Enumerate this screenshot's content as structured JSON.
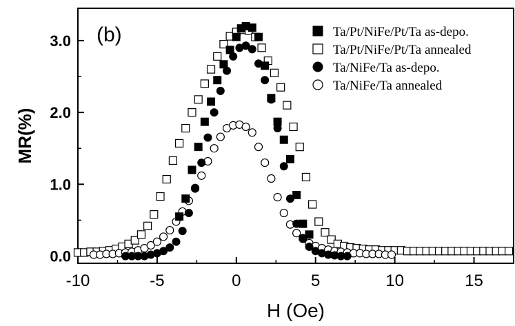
{
  "chart_data": {
    "type": "scatter",
    "panel_label": "(b)",
    "xlabel": "H (Oe)",
    "ylabel": "MR(%)",
    "xlim": [
      -10,
      17.5
    ],
    "ylim": [
      -0.1,
      3.45
    ],
    "xticks": [
      -10,
      -5,
      0,
      5,
      10,
      15
    ],
    "xtick_labels": [
      "-10",
      "-5",
      "0",
      "5",
      "10",
      "15"
    ],
    "yticks": [
      0.0,
      1.0,
      2.0,
      3.0
    ],
    "ytick_labels": [
      "0.0",
      "1.0",
      "2.0",
      "3.0"
    ],
    "grid": false,
    "legend_position": "top-right",
    "series": [
      {
        "name": "Ta/Pt/NiFe/Pt/Ta as-depo.",
        "marker": "square-filled",
        "x": [
          -3.6,
          -3.2,
          -2.8,
          -2.4,
          -2.0,
          -1.6,
          -1.2,
          -0.8,
          -0.4,
          0.0,
          0.3,
          0.6,
          1.0,
          1.4,
          1.8,
          2.2,
          2.6,
          3.0,
          3.4,
          3.8,
          4.2,
          4.6
        ],
        "y": [
          0.55,
          0.8,
          1.2,
          1.52,
          1.87,
          2.15,
          2.45,
          2.67,
          2.87,
          3.05,
          3.17,
          3.2,
          3.18,
          3.05,
          2.65,
          2.2,
          1.87,
          1.62,
          1.35,
          0.85,
          0.45,
          0.3
        ]
      },
      {
        "name": "Ta/Pt/NiFe/Pt/Ta annealed",
        "marker": "square-open",
        "x": [
          -10,
          -9.6,
          -9.2,
          -8.8,
          -8.4,
          -8.0,
          -7.6,
          -7.2,
          -6.8,
          -6.4,
          -6.0,
          -5.6,
          -5.2,
          -4.8,
          -4.4,
          -4.0,
          -3.6,
          -3.2,
          -2.8,
          -2.4,
          -2.0,
          -1.6,
          -1.2,
          -0.8,
          -0.4,
          0.0,
          0.4,
          0.8,
          1.2,
          1.6,
          2.0,
          2.4,
          2.8,
          3.2,
          3.6,
          4.0,
          4.4,
          4.8,
          5.2,
          5.6,
          6.0,
          6.4,
          6.8,
          7.2,
          7.6,
          8.0,
          8.4,
          8.8,
          9.2,
          9.6,
          10.0,
          10.4,
          10.8,
          11.2,
          11.6,
          12.0,
          12.4,
          12.8,
          13.2,
          13.6,
          14.0,
          14.4,
          14.8,
          15.2,
          15.6,
          16.0,
          16.4,
          16.8,
          17.2
        ],
        "y": [
          0.05,
          0.05,
          0.06,
          0.06,
          0.07,
          0.08,
          0.1,
          0.13,
          0.17,
          0.22,
          0.3,
          0.42,
          0.58,
          0.83,
          1.07,
          1.33,
          1.57,
          1.78,
          2.0,
          2.18,
          2.4,
          2.6,
          2.78,
          2.95,
          3.06,
          3.12,
          3.15,
          3.14,
          3.05,
          2.9,
          2.72,
          2.55,
          2.35,
          2.1,
          1.8,
          1.52,
          1.1,
          0.72,
          0.48,
          0.33,
          0.23,
          0.17,
          0.14,
          0.12,
          0.11,
          0.1,
          0.09,
          0.09,
          0.08,
          0.08,
          0.08,
          0.08,
          0.07,
          0.07,
          0.07,
          0.07,
          0.07,
          0.07,
          0.07,
          0.07,
          0.07,
          0.07,
          0.07,
          0.07,
          0.07,
          0.07,
          0.07,
          0.07,
          0.07
        ]
      },
      {
        "name": "Ta/NiFe/Ta as-depo.",
        "marker": "circle-filled",
        "x": [
          -7.0,
          -6.6,
          -6.2,
          -5.8,
          -5.4,
          -5.0,
          -4.6,
          -4.2,
          -3.8,
          -3.4,
          -3.0,
          -2.6,
          -2.2,
          -1.8,
          -1.4,
          -1.0,
          -0.6,
          -0.2,
          0.2,
          0.6,
          1.0,
          1.4,
          1.8,
          2.2,
          2.6,
          3.0,
          3.4,
          3.8,
          4.2,
          4.6,
          5.0,
          5.4,
          5.8,
          6.2,
          6.6,
          7.0
        ],
        "y": [
          0.0,
          0.0,
          0.0,
          0.0,
          0.02,
          0.04,
          0.07,
          0.12,
          0.2,
          0.35,
          0.6,
          0.95,
          1.3,
          1.65,
          2.0,
          2.3,
          2.58,
          2.78,
          2.9,
          2.93,
          2.88,
          2.68,
          2.45,
          2.18,
          1.78,
          1.25,
          0.8,
          0.45,
          0.25,
          0.13,
          0.07,
          0.04,
          0.02,
          0.01,
          0.0,
          0.0
        ]
      },
      {
        "name": "Ta/NiFe/Ta annealed",
        "marker": "circle-open",
        "x": [
          -9.0,
          -8.6,
          -8.2,
          -7.8,
          -7.4,
          -7.0,
          -6.6,
          -6.2,
          -5.8,
          -5.4,
          -5.0,
          -4.6,
          -4.2,
          -3.8,
          -3.4,
          -3.0,
          -2.6,
          -2.2,
          -1.8,
          -1.4,
          -1.0,
          -0.6,
          -0.2,
          0.2,
          0.6,
          1.0,
          1.4,
          1.8,
          2.2,
          2.6,
          3.0,
          3.4,
          3.8,
          4.2,
          4.6,
          5.0,
          5.4,
          5.8,
          6.2,
          6.6,
          7.0,
          7.4,
          7.8,
          8.2,
          8.6,
          9.0,
          9.4,
          9.8
        ],
        "y": [
          0.02,
          0.02,
          0.03,
          0.03,
          0.04,
          0.05,
          0.06,
          0.08,
          0.11,
          0.15,
          0.2,
          0.27,
          0.36,
          0.48,
          0.62,
          0.77,
          0.94,
          1.12,
          1.32,
          1.5,
          1.66,
          1.78,
          1.82,
          1.83,
          1.8,
          1.72,
          1.52,
          1.3,
          1.08,
          0.82,
          0.6,
          0.44,
          0.32,
          0.24,
          0.18,
          0.14,
          0.11,
          0.09,
          0.07,
          0.06,
          0.05,
          0.04,
          0.04,
          0.03,
          0.03,
          0.03,
          0.02,
          0.02
        ]
      }
    ]
  }
}
